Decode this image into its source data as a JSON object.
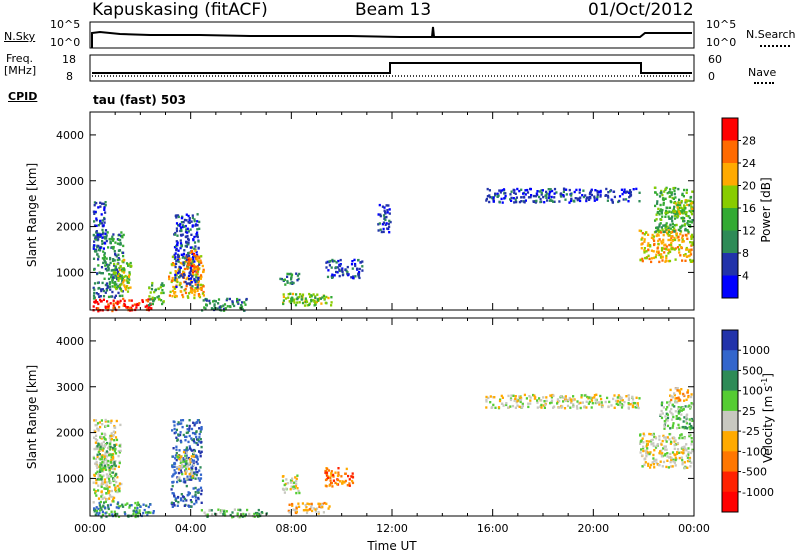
{
  "header": {
    "site": "Kapuskasing (fitACF)",
    "beam": "Beam 13",
    "date": "01/Oct/2012"
  },
  "top_panels": {
    "nsky_label": "N.Sky",
    "nsky_ticks": [
      "10^5",
      "10^0"
    ],
    "nsearch_label": "N.Search",
    "nsearch_ticks": [
      "10^5",
      "10^0"
    ],
    "freq_label": "Freq.",
    "freq_unit": "[MHz]",
    "freq_ticks": [
      "18",
      "8"
    ],
    "nave_label": "Nave",
    "nave_ticks": [
      "60",
      "0"
    ],
    "cpid_label": "CPID",
    "cpid_text": "tau (fast) 503"
  },
  "chart_data": [
    {
      "type": "heatmap",
      "name": "power-panel",
      "ylabel": "Slant Range [km]",
      "xlabel": "",
      "xlim_hours": [
        0,
        24
      ],
      "ylim_km": [
        180,
        4500
      ],
      "y_ticks": [
        1000,
        2000,
        3000,
        4000
      ],
      "colorbar": {
        "label": "Power [dB]",
        "ticks": [
          "28",
          "24",
          "20",
          "16",
          "12",
          "8",
          "4"
        ],
        "colors": [
          "#ff0000",
          "#ff6a00",
          "#ffaa00",
          "#88cc00",
          "#33aa33",
          "#2e8b57",
          "#2233aa",
          "#0000ff"
        ]
      },
      "clusters": [
        {
          "t0": 0.1,
          "t1": 2.5,
          "r0": 180,
          "r1": 450,
          "level": 0
        },
        {
          "t0": 0.1,
          "t1": 1.3,
          "r0": 450,
          "r1": 1900,
          "level": 5
        },
        {
          "t0": 0.1,
          "t1": 0.6,
          "r0": 1500,
          "r1": 2600,
          "level": 6
        },
        {
          "t0": 0.9,
          "t1": 1.6,
          "r0": 600,
          "r1": 1300,
          "level": 3
        },
        {
          "t0": 2.3,
          "t1": 2.9,
          "r0": 300,
          "r1": 800,
          "level": 4
        },
        {
          "t0": 3.1,
          "t1": 4.5,
          "r0": 450,
          "r1": 1400,
          "level": 2
        },
        {
          "t0": 3.3,
          "t1": 4.3,
          "r0": 700,
          "r1": 2300,
          "level": 6
        },
        {
          "t0": 3.8,
          "t1": 4.3,
          "r0": 1000,
          "r1": 1500,
          "level": 1
        },
        {
          "t0": 4.4,
          "t1": 6.2,
          "r0": 180,
          "r1": 450,
          "level": 5
        },
        {
          "t0": 7.6,
          "t1": 9.6,
          "r0": 300,
          "r1": 560,
          "level": 3
        },
        {
          "t0": 7.9,
          "t1": 9.2,
          "r0": 350,
          "r1": 480,
          "level": 4
        },
        {
          "t0": 7.5,
          "t1": 8.3,
          "r0": 750,
          "r1": 1000,
          "level": 5
        },
        {
          "t0": 9.3,
          "t1": 10.8,
          "r0": 900,
          "r1": 1300,
          "level": 6
        },
        {
          "t0": 11.4,
          "t1": 11.9,
          "r0": 1900,
          "r1": 2500,
          "level": 6
        },
        {
          "t0": 15.7,
          "t1": 21.8,
          "r0": 2550,
          "r1": 2850,
          "level": 6
        },
        {
          "t0": 21.8,
          "t1": 23.9,
          "r0": 1250,
          "r1": 1950,
          "level": 2
        },
        {
          "t0": 22.4,
          "t1": 23.9,
          "r0": 1900,
          "r1": 2900,
          "level": 4
        },
        {
          "t0": 23.1,
          "t1": 23.9,
          "r0": 2200,
          "r1": 2600,
          "level": 3
        }
      ]
    },
    {
      "type": "heatmap",
      "name": "velocity-panel",
      "ylabel": "Slant Range [km]",
      "xlabel": "Time UT",
      "xlim_hours": [
        0,
        24
      ],
      "ylim_km": [
        180,
        4500
      ],
      "y_ticks": [
        1000,
        2000,
        3000,
        4000
      ],
      "x_ticks": [
        "00:00",
        "04:00",
        "08:00",
        "12:00",
        "16:00",
        "20:00",
        "00:00"
      ],
      "colorbar": {
        "label": "Velocity [m s",
        "label_sup": "-1",
        "label_end": "]",
        "ticks": [
          "1000",
          "500",
          "100",
          "25",
          "-25",
          "-100",
          "-500",
          "-1000"
        ],
        "colors": [
          "#2233aa",
          "#3366cc",
          "#2e8b57",
          "#55cc33",
          "#c8c8c0",
          "#ffaa00",
          "#ff7700",
          "#ff2200",
          "#ff0000"
        ]
      },
      "clusters": [
        {
          "t0": 0.1,
          "t1": 2.5,
          "r0": 180,
          "r1": 500,
          "level": 2
        },
        {
          "t0": 0.1,
          "t1": 1.2,
          "r0": 500,
          "r1": 2300,
          "level": 4
        },
        {
          "t0": 0.2,
          "t1": 1.0,
          "r0": 1000,
          "r1": 1800,
          "level": 3
        },
        {
          "t0": 3.2,
          "t1": 4.4,
          "r0": 400,
          "r1": 2300,
          "level": 1
        },
        {
          "t0": 3.4,
          "t1": 4.1,
          "r0": 1000,
          "r1": 1600,
          "level": 4
        },
        {
          "t0": 4.4,
          "t1": 7.0,
          "r0": 180,
          "r1": 350,
          "level": 3
        },
        {
          "t0": 7.8,
          "t1": 9.5,
          "r0": 250,
          "r1": 500,
          "level": 5
        },
        {
          "t0": 7.6,
          "t1": 8.3,
          "r0": 700,
          "r1": 1100,
          "level": 4
        },
        {
          "t0": 9.3,
          "t1": 10.5,
          "r0": 850,
          "r1": 1250,
          "level": 6
        },
        {
          "t0": 15.7,
          "t1": 21.8,
          "r0": 2550,
          "r1": 2850,
          "level": 4
        },
        {
          "t0": 21.8,
          "t1": 23.9,
          "r0": 1250,
          "r1": 2000,
          "level": 4
        },
        {
          "t0": 22.6,
          "t1": 23.9,
          "r0": 2100,
          "r1": 2700,
          "level": 3
        },
        {
          "t0": 23.0,
          "t1": 23.9,
          "r0": 2700,
          "r1": 3000,
          "level": 5
        }
      ]
    }
  ]
}
